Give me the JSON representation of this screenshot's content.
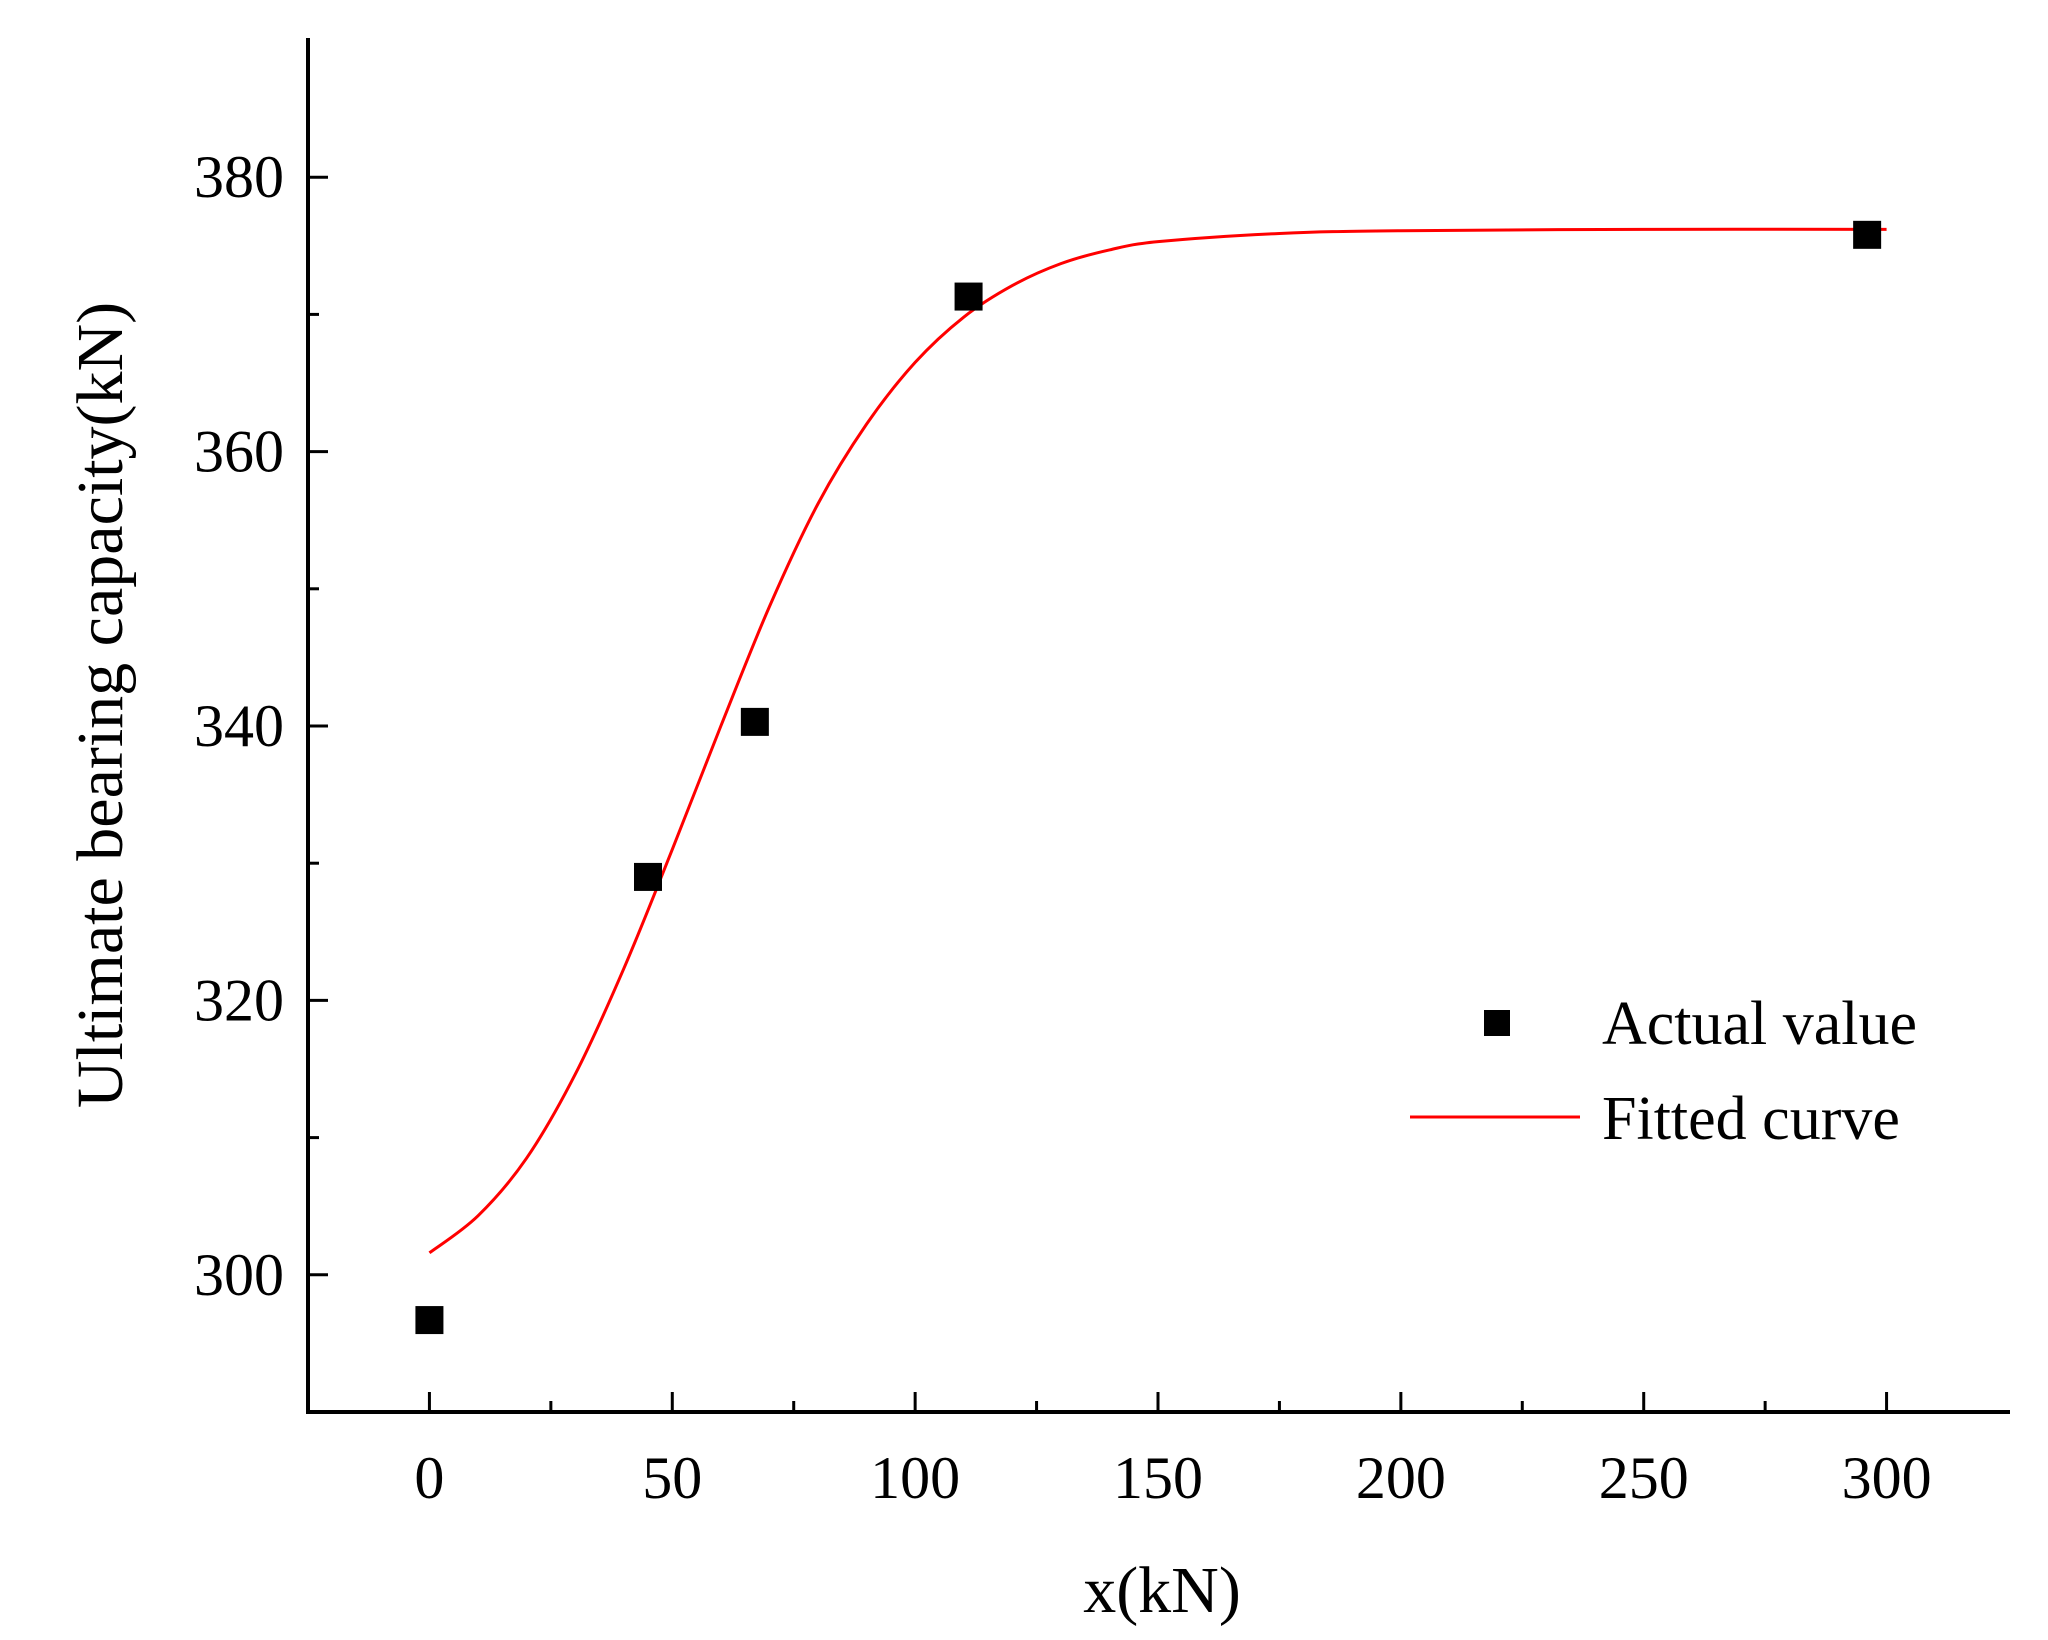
{
  "chart_data": {
    "type": "scatter",
    "title": "",
    "xlabel": "x(kN)",
    "ylabel": "Ultimate bearing capacity(kN)",
    "xlim": [
      -25,
      325
    ],
    "ylim": [
      290,
      390
    ],
    "x_ticks": [
      0,
      50,
      100,
      150,
      200,
      250,
      300
    ],
    "x_tick_labels": [
      "0",
      "50",
      "100",
      "150",
      "200",
      "250",
      "300"
    ],
    "x_minor_ticks": [
      25,
      75,
      125,
      175,
      225,
      275
    ],
    "y_ticks": [
      300,
      320,
      340,
      360,
      380
    ],
    "y_tick_labels": [
      "300",
      "320",
      "340",
      "360",
      "380"
    ],
    "y_minor_ticks": [
      310,
      330,
      350,
      370
    ],
    "grid": false,
    "legend_position": "center-right",
    "series": [
      {
        "name": "Actual value",
        "kind": "scatter",
        "marker": "square",
        "color": "#000000",
        "x": [
          0,
          45,
          67,
          111,
          296
        ],
        "y": [
          296.7,
          329.0,
          340.3,
          371.3,
          375.8
        ]
      },
      {
        "name": "Fitted curve",
        "kind": "line",
        "color": "#ff0000",
        "x": [
          0,
          10,
          20,
          30,
          40,
          50,
          60,
          70,
          80,
          90,
          100,
          110,
          120,
          130,
          140,
          150,
          175,
          200,
          250,
          300
        ],
        "y": [
          301.6,
          304.3,
          308.5,
          314.6,
          322.3,
          331.0,
          340.0,
          348.7,
          356.2,
          362.0,
          366.5,
          369.8,
          372.1,
          373.7,
          374.7,
          375.3,
          375.9,
          376.1,
          376.2,
          376.2
        ]
      }
    ]
  }
}
